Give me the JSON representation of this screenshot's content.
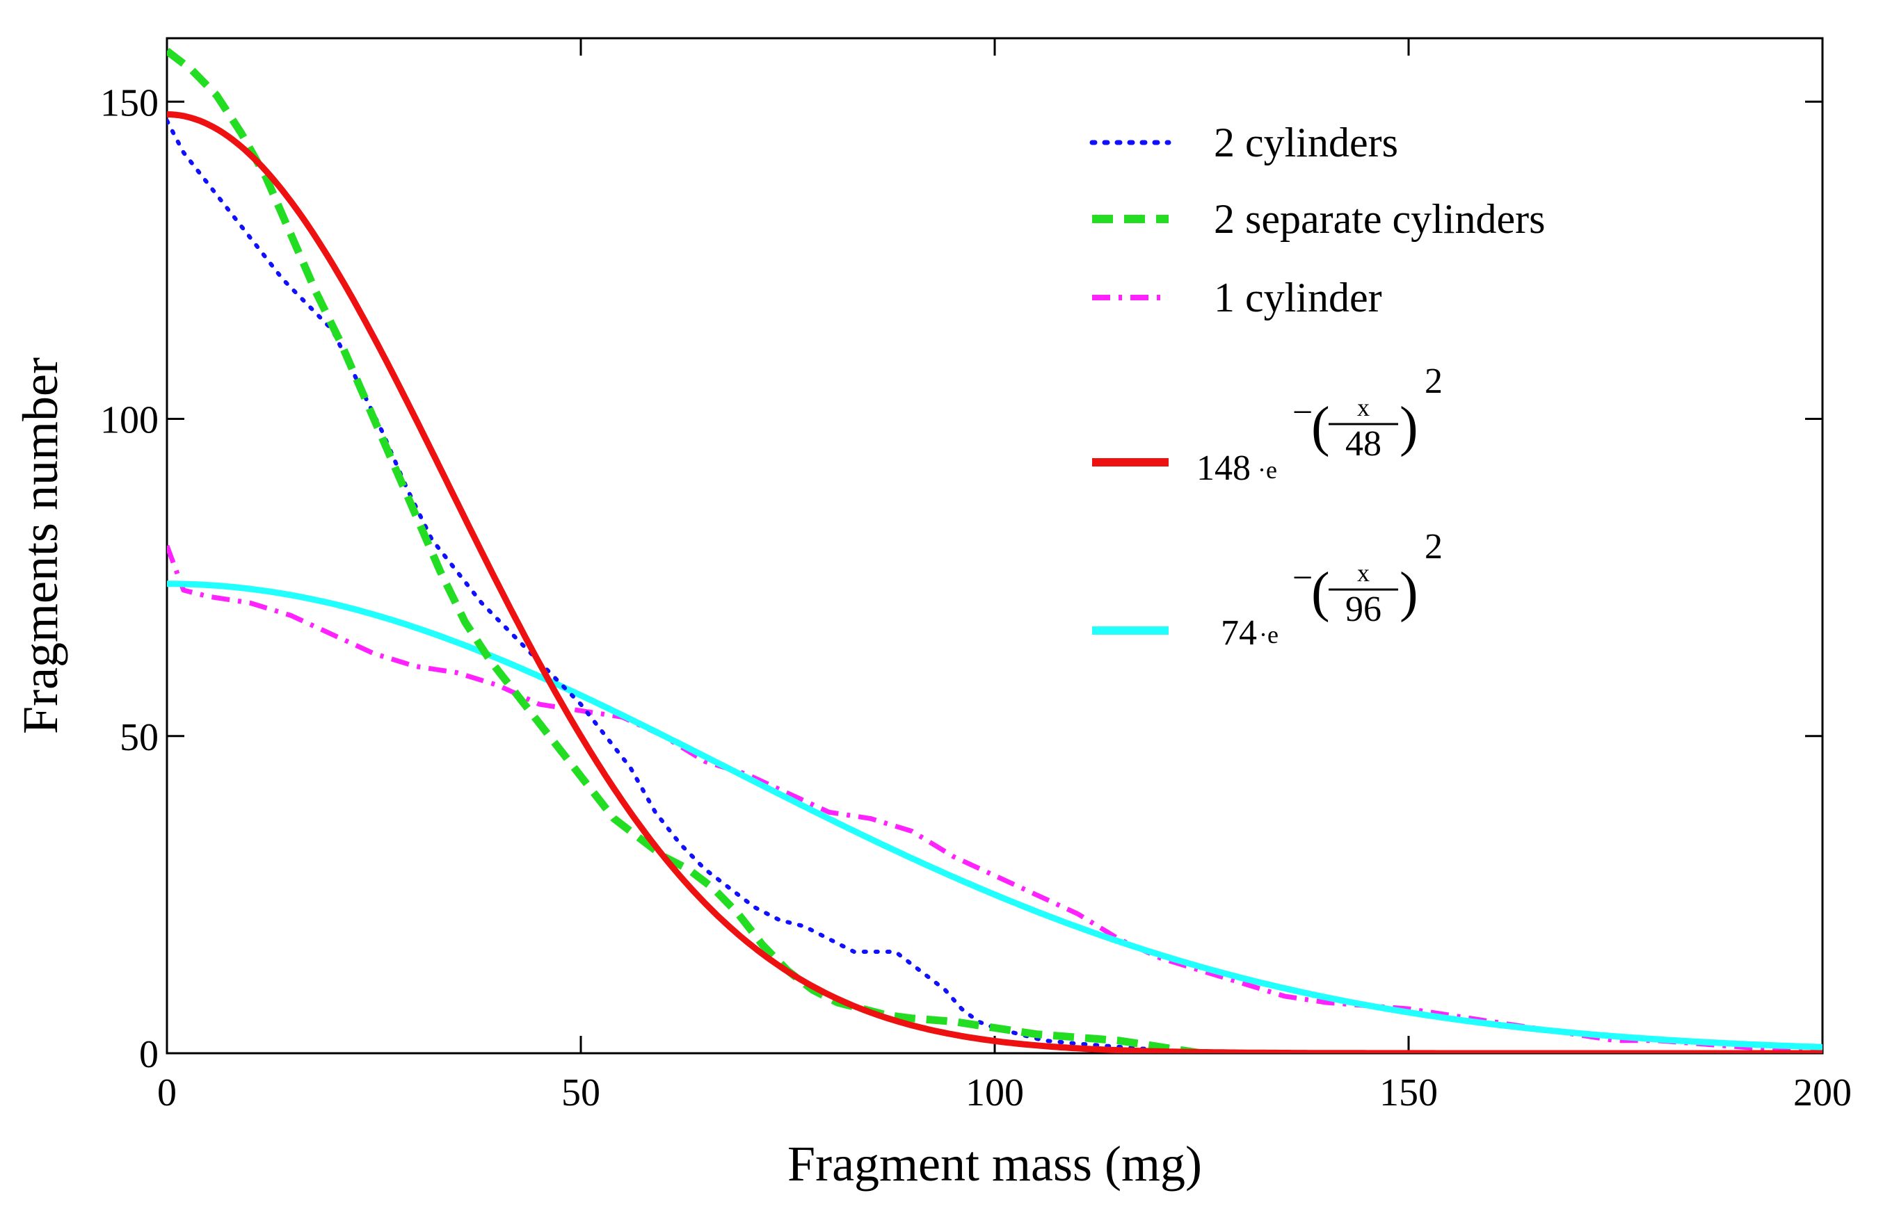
{
  "chart_data": {
    "type": "line",
    "xlabel": "Fragment mass (mg)",
    "ylabel": "Fragments number",
    "xlim": [
      0,
      200
    ],
    "ylim": [
      0,
      160
    ],
    "xticks": [
      0,
      50,
      100,
      150,
      200
    ],
    "yticks": [
      0,
      50,
      100,
      150
    ],
    "xtick_labels": [
      "0",
      "50",
      "100",
      "150",
      "200"
    ],
    "ytick_labels": [
      "0",
      "50",
      "100",
      "150"
    ],
    "grid": false,
    "legend_position": "top-right",
    "series": [
      {
        "name": "2 cylinders",
        "color": "#1010ff",
        "style": "dotted",
        "x": [
          0,
          2,
          5,
          8,
          11,
          14,
          17,
          20,
          23,
          26,
          29,
          32,
          35,
          38,
          41,
          44,
          47,
          50,
          53,
          56,
          59,
          62,
          65,
          68,
          71,
          74,
          77,
          80,
          83,
          86,
          88,
          90,
          92,
          94,
          96,
          98,
          100,
          103,
          106,
          110,
          115,
          120,
          125
        ],
        "y": [
          147,
          142,
          137,
          132,
          127,
          122,
          118,
          114,
          106,
          98,
          89,
          81,
          76,
          71,
          67,
          63,
          59,
          55,
          50,
          45,
          38,
          33,
          29,
          26,
          23,
          21,
          20,
          18,
          16,
          16,
          16,
          14,
          12,
          10,
          7,
          5,
          4,
          3,
          2,
          1.5,
          1,
          0.5,
          0
        ]
      },
      {
        "name": "2 separate cylinders",
        "color": "#22dd22",
        "style": "dashed",
        "x": [
          0,
          3,
          6,
          9,
          12,
          15,
          18,
          21,
          24,
          27,
          30,
          33,
          36,
          39,
          42,
          45,
          48,
          51,
          54,
          57,
          60,
          63,
          66,
          69,
          72,
          75,
          78,
          81,
          84,
          87,
          90,
          95,
          100,
          105,
          110,
          115,
          120,
          125
        ],
        "y": [
          158,
          155,
          151,
          145,
          138,
          129,
          120,
          112,
          103,
          94,
          85,
          76,
          68,
          62,
          57,
          52,
          47,
          42,
          37,
          34,
          31,
          29,
          26,
          22,
          17,
          13,
          10,
          8,
          7,
          6,
          5.5,
          5,
          4,
          3,
          2.5,
          2,
          1,
          0
        ]
      },
      {
        "name": "1 cylinder",
        "color": "#ff22ff",
        "style": "dash-dot",
        "x": [
          0,
          2,
          5,
          10,
          15,
          20,
          25,
          30,
          35,
          40,
          45,
          50,
          55,
          60,
          65,
          70,
          75,
          80,
          85,
          90,
          95,
          100,
          105,
          110,
          115,
          120,
          125,
          130,
          135,
          140,
          145,
          150,
          155,
          160,
          165,
          170,
          175,
          180,
          185,
          190,
          195,
          200
        ],
        "y": [
          80,
          73,
          72,
          71,
          69,
          66,
          63,
          61,
          60,
          58,
          55,
          54,
          53,
          50,
          46,
          44,
          41,
          38,
          37,
          35,
          31,
          28,
          25,
          22,
          18,
          15,
          13,
          11,
          9,
          8,
          7.5,
          7,
          6,
          5,
          4,
          3,
          2,
          2,
          1.5,
          1,
          0.5,
          0.5
        ]
      },
      {
        "name": "148·e^(−(x/48)^2)",
        "color": "#ee1111",
        "style": "solid",
        "function": {
          "amplitude": 148,
          "scale": 48
        }
      },
      {
        "name": "74·e^(−(x/96)^2)",
        "color": "#22ffff",
        "style": "solid",
        "function": {
          "amplitude": 74,
          "scale": 96
        }
      }
    ]
  },
  "legend": {
    "items": [
      {
        "label": "2 cylinders"
      },
      {
        "label": "2 separate cylinders"
      },
      {
        "label": "1 cylinder"
      },
      {
        "coef": "148",
        "dot": "·e",
        "minus": "−",
        "num": "x",
        "den": "48",
        "exp": "2"
      },
      {
        "coef": "74",
        "dot": "·e",
        "minus": "−",
        "num": "x",
        "den": "96",
        "exp": "2"
      }
    ]
  }
}
